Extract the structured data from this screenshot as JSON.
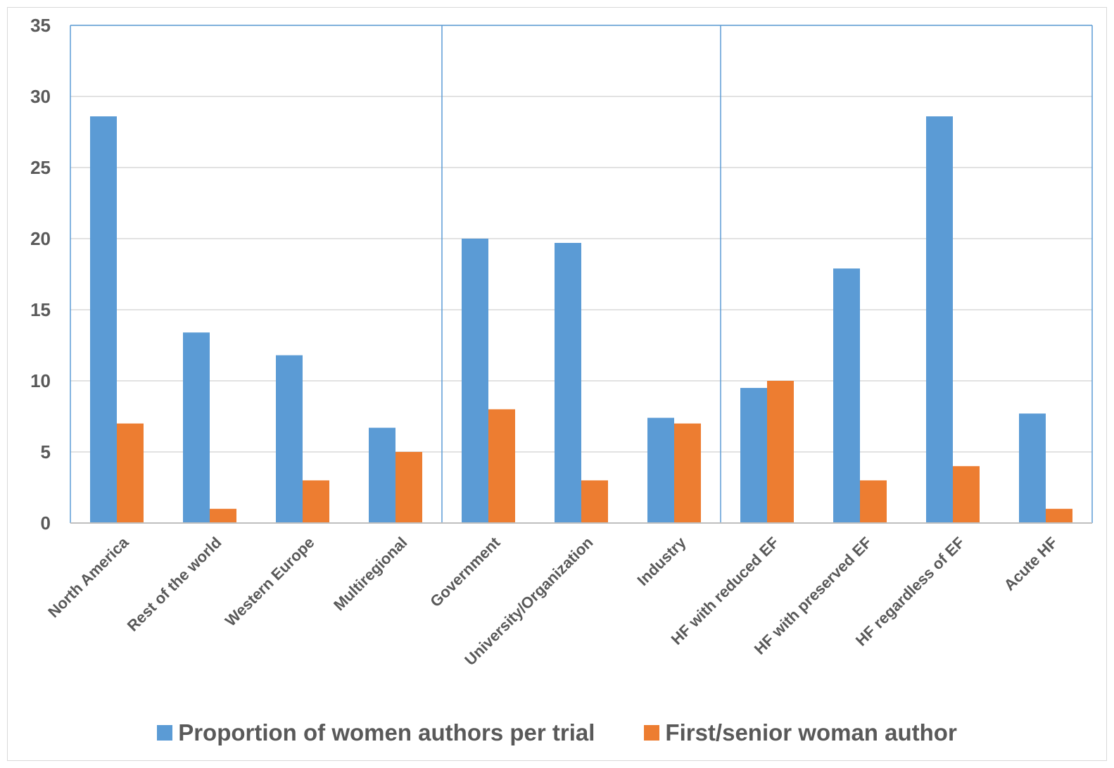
{
  "chart_data": {
    "type": "bar",
    "categories": [
      "North America",
      "Rest of the world",
      "Western Europe",
      "Multiregional",
      "Government",
      "University/Organization",
      "Industry",
      "HF with reduced EF",
      "HF with preserved EF",
      "HF regardless of EF",
      "Acute HF"
    ],
    "series": [
      {
        "name": "Proportion of women authors per trial",
        "color": "#5b9bd5",
        "values": [
          28.6,
          13.4,
          11.8,
          6.7,
          20.0,
          19.7,
          7.4,
          9.5,
          17.9,
          28.6,
          7.7
        ]
      },
      {
        "name": "First/senior woman author",
        "color": "#ed7d31",
        "values": [
          7,
          1,
          3,
          5,
          8,
          3,
          7,
          10,
          3,
          4,
          1
        ]
      }
    ],
    "yticks": [
      "0",
      "5",
      "10",
      "15",
      "20",
      "25",
      "30",
      "35"
    ],
    "ylim": [
      0,
      35
    ],
    "group_boundaries_after": [
      3,
      6
    ],
    "grid": true,
    "legend_position": "bottom",
    "title": "",
    "xlabel": "",
    "ylabel": ""
  },
  "colors": {
    "grid": "#d9d9d9",
    "divider": "#5b9bd5",
    "axis": "#bfbfbf",
    "text": "#595959"
  }
}
